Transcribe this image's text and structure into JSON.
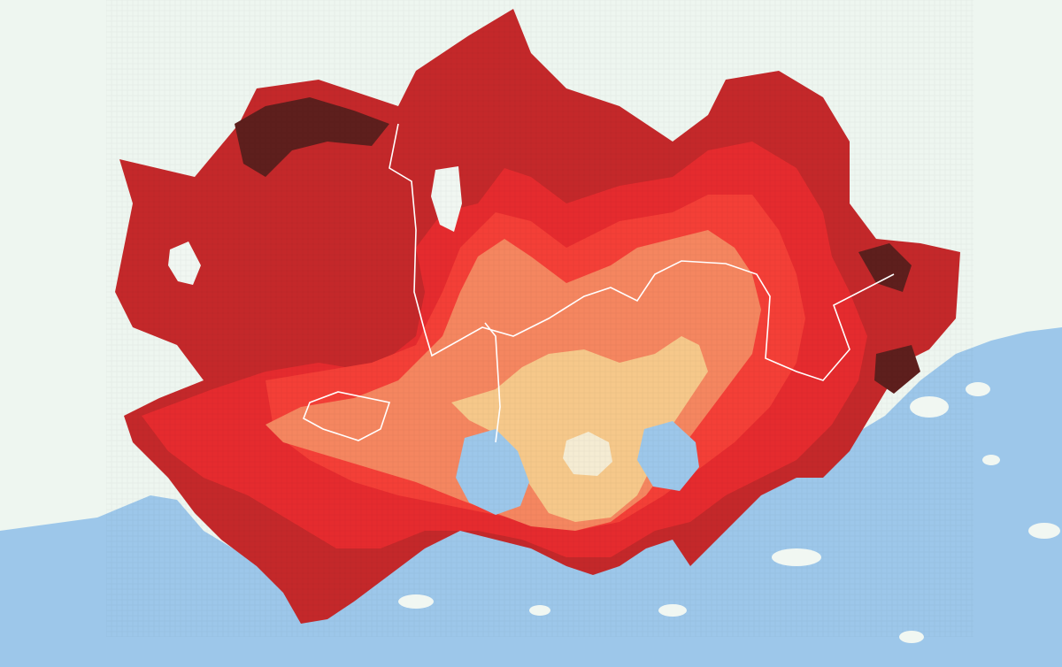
{
  "map": {
    "colors": {
      "background": "#eef6f0",
      "sea": "#9dc7ea",
      "island": "#f1f7f2",
      "boundary": "#ffffff",
      "zone_1": "#5e1f1d",
      "zone_2": "#c4282a",
      "zone_3": "#e52b2e",
      "zone_4": "#f43f37",
      "zone_5": "#f58660",
      "zone_6": "#f6c88a",
      "zone_7": "#f5ecd3"
    },
    "legend": []
  }
}
